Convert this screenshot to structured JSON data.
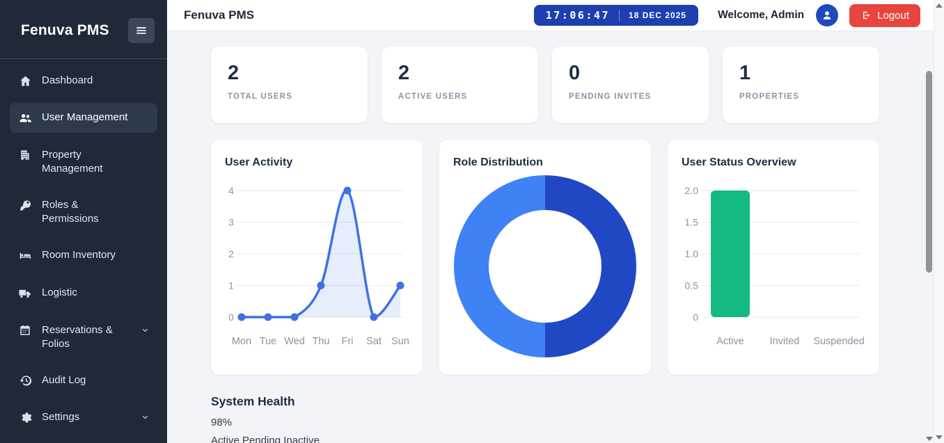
{
  "sidebar": {
    "logo": "Fenuva PMS",
    "items": [
      {
        "label": "Dashboard",
        "icon": "home",
        "active": false
      },
      {
        "label": "User Management",
        "icon": "users",
        "active": true
      },
      {
        "label": "Property Management",
        "icon": "building",
        "active": false
      },
      {
        "label": "Roles & Permissions",
        "icon": "key",
        "active": false
      },
      {
        "label": "Room Inventory",
        "icon": "bed",
        "active": false
      },
      {
        "label": "Logistic",
        "icon": "truck",
        "active": false
      },
      {
        "label": "Reservations & Folios",
        "icon": "calendar",
        "active": false,
        "chevron": true
      },
      {
        "label": "Audit Log",
        "icon": "history",
        "active": false
      },
      {
        "label": "Settings",
        "icon": "gear",
        "active": false,
        "chevron": true
      }
    ]
  },
  "header": {
    "title": "Fenuva PMS",
    "clock_time": "17:06:47",
    "clock_date": "18 DEC 2025",
    "welcome": "Welcome, Admin",
    "logout_label": "Logout"
  },
  "stats": [
    {
      "value": "2",
      "label": "TOTAL USERS"
    },
    {
      "value": "2",
      "label": "ACTIVE USERS"
    },
    {
      "value": "0",
      "label": "PENDING INVITES"
    },
    {
      "value": "1",
      "label": "PROPERTIES"
    }
  ],
  "system_health": {
    "title": "System Health",
    "value": "98%",
    "legend": "Active Pending Inactive"
  },
  "colors": {
    "sidebar_bg": "#1f2937",
    "badge_blue": "#1d3faf",
    "avatar_blue": "#1e4abc",
    "logout_red": "#e8453f",
    "line_blue": "#3e71e1",
    "donut_dark": "#2148c4",
    "donut_light": "#3e82f5",
    "bar_green": "#13b981"
  },
  "chart_data": [
    {
      "type": "line",
      "title": "User Activity",
      "categories": [
        "Mon",
        "Tue",
        "Wed",
        "Thu",
        "Fri",
        "Sat",
        "Sun"
      ],
      "values": [
        0,
        0,
        0,
        1,
        4,
        0,
        1
      ],
      "ylim": [
        0,
        4
      ],
      "yticks": [
        0,
        1,
        2,
        3,
        4
      ],
      "ytick_labels": [
        "0",
        "1",
        "2",
        "3",
        "4"
      ],
      "grid": true,
      "legend": "none",
      "line_color": "#3e71e1",
      "fill_color": "rgba(62,113,225,0.13)"
    },
    {
      "type": "donut",
      "title": "Role Distribution",
      "segments": [
        {
          "value": 50,
          "color": "#2148c4"
        },
        {
          "value": 50,
          "color": "#3e82f5"
        }
      ],
      "legend": "none"
    },
    {
      "type": "bar",
      "title": "User Status Overview",
      "categories": [
        "Active",
        "Invited",
        "Suspended"
      ],
      "values": [
        2,
        0,
        0
      ],
      "ylim": [
        0,
        2
      ],
      "yticks": [
        0,
        0.5,
        1,
        1.5,
        2
      ],
      "ytick_labels": [
        "0",
        "0.5",
        "1.0",
        "1.5",
        "2.0"
      ],
      "grid": true,
      "legend": "none",
      "bar_color": "#13b981"
    }
  ]
}
